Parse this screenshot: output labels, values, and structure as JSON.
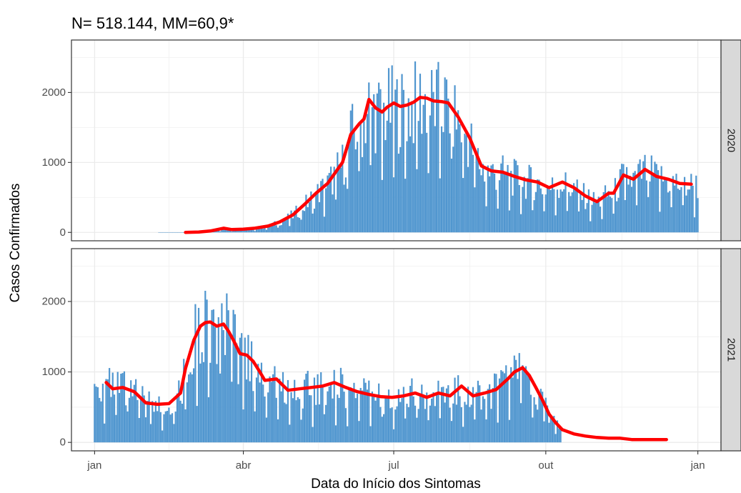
{
  "chart_data": {
    "type": "bar",
    "title": "N= 518.144, MM=60,9*",
    "xlabel": "Data do Início dos Sintomas",
    "ylabel": "Casos Confirmados",
    "x_ticks": [
      "jan",
      "abr",
      "jul",
      "out",
      "jan"
    ],
    "x_tick_days": [
      0,
      90,
      181,
      273,
      365
    ],
    "y_ticks": [
      0,
      1000,
      2000
    ],
    "ylim": [
      -120,
      2750
    ],
    "xlim": [
      -14,
      379
    ],
    "bar_color": "#5096cf",
    "line_color": "#ff0000",
    "grid": true,
    "facets": [
      {
        "label": "2020",
        "bar_range": [
          39,
          365
        ],
        "moving_average_days": [
          55,
          63,
          70,
          78,
          83,
          90,
          97,
          105,
          112,
          120,
          127,
          134,
          141,
          150,
          155,
          160,
          163,
          166,
          170,
          174,
          177,
          181,
          185,
          189,
          193,
          197,
          201,
          205,
          210,
          214,
          220,
          227,
          234,
          240,
          247,
          254,
          261,
          268,
          275,
          283,
          290,
          297,
          304,
          311,
          314,
          320,
          326,
          333,
          340,
          347,
          354,
          361
        ],
        "moving_average": [
          0,
          5,
          20,
          60,
          40,
          45,
          60,
          90,
          150,
          250,
          400,
          560,
          700,
          1000,
          1400,
          1550,
          1620,
          1900,
          1780,
          1720,
          1790,
          1850,
          1800,
          1820,
          1860,
          1930,
          1920,
          1880,
          1870,
          1850,
          1650,
          1350,
          950,
          880,
          860,
          800,
          750,
          720,
          640,
          720,
          640,
          520,
          440,
          560,
          560,
          820,
          760,
          900,
          800,
          760,
          700,
          690
        ]
      },
      {
        "label": "2021",
        "bar_range": [
          0,
          282
        ],
        "moving_average_days": [
          7,
          11,
          17,
          24,
          31,
          38,
          45,
          52,
          55,
          60,
          64,
          67,
          70,
          74,
          78,
          81,
          84,
          88,
          92,
          96,
          100,
          103,
          110,
          117,
          124,
          131,
          138,
          145,
          152,
          159,
          166,
          173,
          180,
          187,
          194,
          201,
          208,
          215,
          222,
          229,
          236,
          243,
          250,
          254,
          259,
          263,
          267,
          271,
          275,
          279,
          283,
          290,
          297,
          304,
          311,
          318,
          325,
          332,
          339,
          346
        ],
        "moving_average": [
          850,
          760,
          780,
          720,
          560,
          540,
          550,
          700,
          1050,
          1450,
          1650,
          1700,
          1710,
          1650,
          1680,
          1580,
          1450,
          1260,
          1240,
          1150,
          1000,
          880,
          900,
          740,
          760,
          780,
          800,
          850,
          780,
          720,
          680,
          650,
          640,
          660,
          700,
          640,
          700,
          660,
          800,
          660,
          700,
          750,
          900,
          1000,
          1060,
          950,
          780,
          600,
          400,
          280,
          180,
          120,
          90,
          70,
          60,
          60,
          40,
          40,
          40,
          40
        ]
      }
    ]
  }
}
